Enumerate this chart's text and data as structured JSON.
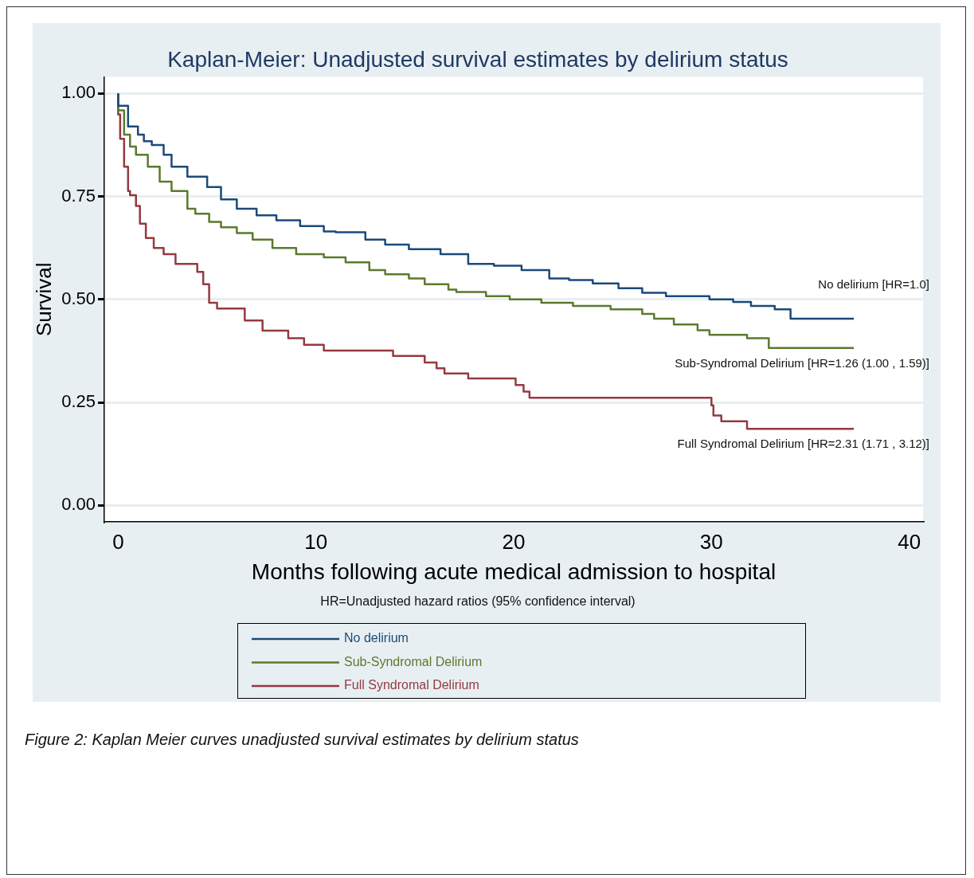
{
  "chart_data": {
    "type": "step",
    "title": "Kaplan-Meier: Unadjusted survival estimates by delirium status",
    "xlabel": "Months following acute medical admission to hospital",
    "ylabel": "Survival",
    "xlim": [
      -0.7,
      40.7
    ],
    "xticks": [
      0,
      10,
      20,
      30,
      40
    ],
    "ylim": [
      -0.04,
      1.04
    ],
    "yticks": [
      {
        "value": 0,
        "label": "0.00"
      },
      {
        "value": 0.25,
        "label": "0.25"
      },
      {
        "value": 0.5,
        "label": "0.50"
      },
      {
        "value": 0.75,
        "label": "0.75"
      },
      {
        "value": 1,
        "label": "1.00"
      }
    ],
    "grid": "y",
    "legend": "bottom",
    "marker": "none",
    "line_style": "solid",
    "series": [
      {
        "name": "No delirium",
        "color": "#1a4a7a",
        "x": [
          0,
          0.5,
          1.0,
          1.3,
          1.7,
          2.3,
          2.7,
          3.5,
          4.5,
          5.2,
          6.0,
          7.0,
          8.0,
          9.2,
          10.4,
          11.0,
          12.5,
          13.5,
          14.7,
          16.3,
          17.7,
          19.0,
          20.4,
          21.8,
          22.8,
          24.0,
          25.3,
          26.5,
          27.7,
          29.9,
          31.1,
          32.0,
          33.2,
          34.0,
          34.8,
          37.2
        ],
        "values": [
          1.0,
          0.97,
          0.92,
          0.9,
          0.884,
          0.875,
          0.851,
          0.822,
          0.798,
          0.773,
          0.743,
          0.72,
          0.704,
          0.692,
          0.678,
          0.665,
          0.663,
          0.645,
          0.633,
          0.622,
          0.61,
          0.586,
          0.582,
          0.571,
          0.551,
          0.547,
          0.539,
          0.527,
          0.516,
          0.508,
          0.5,
          0.494,
          0.484,
          0.476,
          0.453,
          0.453
        ]
      },
      {
        "name": "Sub-Syndromal Delirium",
        "color": "#5a7a2e",
        "x": [
          0,
          0.3,
          0.6,
          0.9,
          1.5,
          2.1,
          2.7,
          3.5,
          3.9,
          4.6,
          5.2,
          6.0,
          6.8,
          7.8,
          9.0,
          10.4,
          11.5,
          12.7,
          13.5,
          14.7,
          15.5,
          16.7,
          17.1,
          18.6,
          19.8,
          21.4,
          23.0,
          24.9,
          26.5,
          27.1,
          28.1,
          29.3,
          29.9,
          31.8,
          32.9,
          35.2,
          37.2
        ],
        "values": [
          1.0,
          0.959,
          0.9,
          0.871,
          0.851,
          0.822,
          0.786,
          0.763,
          0.72,
          0.708,
          0.688,
          0.675,
          0.661,
          0.645,
          0.625,
          0.61,
          0.602,
          0.59,
          0.571,
          0.561,
          0.551,
          0.537,
          0.524,
          0.518,
          0.508,
          0.5,
          0.492,
          0.484,
          0.476,
          0.465,
          0.453,
          0.439,
          0.425,
          0.414,
          0.406,
          0.382,
          0.382
        ]
      },
      {
        "name": "Full Syndromal Delirium",
        "color": "#943a40",
        "x": [
          0,
          0.1,
          0.3,
          0.5,
          0.6,
          0.9,
          1.1,
          1.4,
          1.8,
          2.3,
          2.9,
          4.0,
          4.3,
          4.6,
          5.0,
          6.4,
          7.3,
          8.6,
          9.4,
          10.4,
          13.9,
          15.5,
          16.1,
          16.5,
          17.7,
          20.1,
          20.5,
          20.8,
          21.0,
          30.0,
          30.1,
          30.5,
          31.8,
          32.4,
          37.2
        ],
        "values": [
          1.0,
          0.949,
          0.89,
          0.822,
          0.763,
          0.753,
          0.727,
          0.684,
          0.649,
          0.625,
          0.61,
          0.586,
          0.567,
          0.537,
          0.492,
          0.478,
          0.449,
          0.424,
          0.406,
          0.39,
          0.376,
          0.363,
          0.347,
          0.333,
          0.32,
          0.308,
          0.292,
          0.276,
          0.261,
          0.261,
          0.243,
          0.218,
          0.204,
          0.186,
          0.186
        ]
      }
    ],
    "annotations": [
      "No delirium [HR=1.0]",
      "Sub-Syndromal Delirium [HR=1.26 (1.00 , 1.59)]",
      "Full Syndromal Delirium [HR=2.31 (1.71 , 3.12)]",
      "HR=Unadjusted hazard ratios (95% confidence interval)",
      "Figure 2: Kaplan Meier curves unadjusted survival estimates by delirium status"
    ]
  }
}
